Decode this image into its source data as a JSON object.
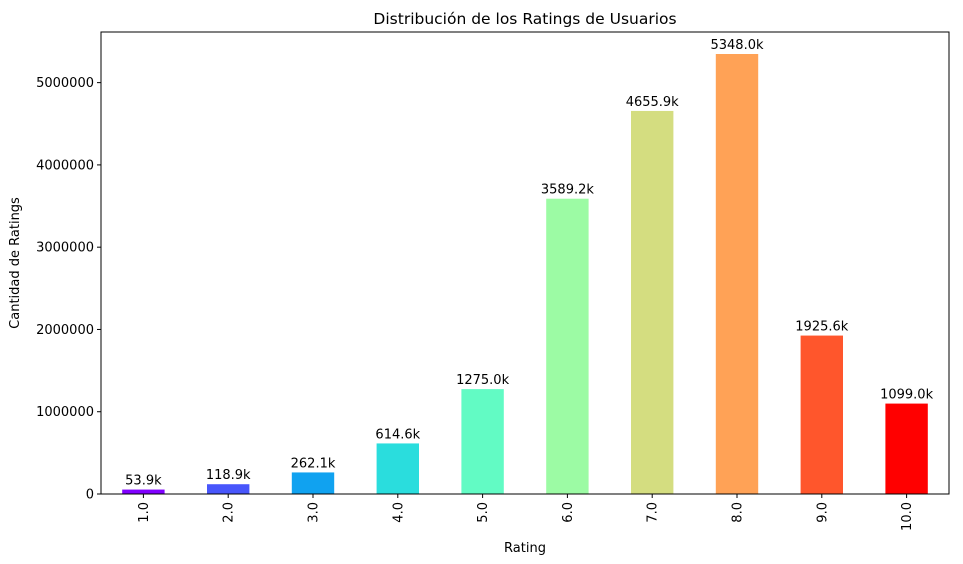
{
  "chart_data": {
    "type": "bar",
    "title": "Distribución de los Ratings de Usuarios",
    "xlabel": "Rating",
    "ylabel": "Cantidad de Ratings",
    "categories": [
      "1.0",
      "2.0",
      "3.0",
      "4.0",
      "5.0",
      "6.0",
      "7.0",
      "8.0",
      "9.0",
      "10.0"
    ],
    "values": [
      53900,
      118900,
      262100,
      614600,
      1275000,
      3589200,
      4655900,
      5348000,
      1925600,
      1099000
    ],
    "data_labels": [
      "53.9k",
      "118.9k",
      "262.1k",
      "614.6k",
      "1275.0k",
      "3589.2k",
      "4655.9k",
      "5348.0k",
      "1925.6k",
      "1099.0k"
    ],
    "colors": [
      "#8000ff",
      "#4856fb",
      "#10a2f0",
      "#2adddd",
      "#62fbc4",
      "#9cfba4",
      "#d4dd80",
      "#ffa256",
      "#ff562c",
      "#ff0000"
    ],
    "yticks": [
      0,
      1000000,
      2000000,
      3000000,
      4000000,
      5000000
    ],
    "ytick_labels": [
      "0",
      "1000000",
      "2000000",
      "3000000",
      "4000000",
      "5000000"
    ],
    "ylim": [
      0,
      5615400
    ],
    "xtick_rotation": "vertical",
    "grid": false,
    "legend": "none"
  }
}
